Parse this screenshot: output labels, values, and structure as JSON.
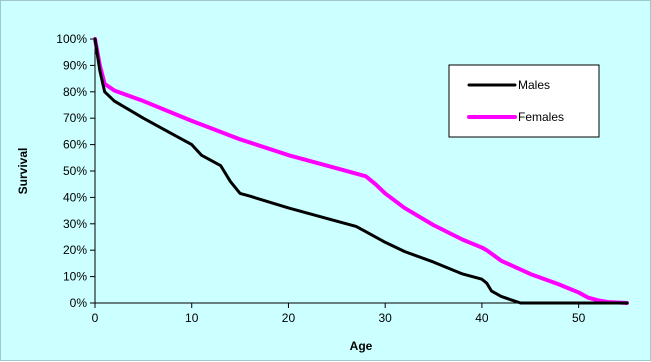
{
  "chart_data": {
    "type": "line",
    "xlabel": "Age",
    "ylabel": "Survival",
    "xlim": [
      0,
      55
    ],
    "ylim": [
      0,
      100
    ],
    "x_ticks": [
      0,
      10,
      20,
      30,
      40,
      50
    ],
    "y_ticks": [
      0,
      10,
      20,
      30,
      40,
      50,
      60,
      70,
      80,
      90,
      100
    ],
    "y_tick_suffix": "%",
    "grid": false,
    "legend_position": "top-right",
    "background_color": "#ccffff",
    "plot_background_color": "#ccffff",
    "series": [
      {
        "name": "Males",
        "color": "#000000",
        "points": [
          [
            0,
            100
          ],
          [
            0.5,
            88
          ],
          [
            1,
            80
          ],
          [
            2,
            76.5
          ],
          [
            5,
            70
          ],
          [
            8,
            64
          ],
          [
            10,
            60
          ],
          [
            11,
            56
          ],
          [
            13,
            52
          ],
          [
            14,
            46
          ],
          [
            15,
            41.5
          ],
          [
            16,
            40.5
          ],
          [
            20,
            36
          ],
          [
            25,
            31
          ],
          [
            27,
            29
          ],
          [
            28,
            27
          ],
          [
            30,
            23
          ],
          [
            32,
            19.5
          ],
          [
            35,
            15.5
          ],
          [
            38,
            11
          ],
          [
            40,
            9
          ],
          [
            40.5,
            7.5
          ],
          [
            41,
            4.5
          ],
          [
            42,
            2.5
          ],
          [
            43,
            1.2
          ],
          [
            44,
            0
          ],
          [
            45,
            0
          ],
          [
            50,
            0
          ],
          [
            55,
            0
          ]
        ]
      },
      {
        "name": "Females",
        "color": "#ff00ff",
        "points": [
          [
            0,
            100
          ],
          [
            0.5,
            90
          ],
          [
            1,
            83
          ],
          [
            2,
            80.5
          ],
          [
            5,
            76.5
          ],
          [
            10,
            69
          ],
          [
            15,
            62
          ],
          [
            20,
            56
          ],
          [
            25,
            51
          ],
          [
            28,
            48
          ],
          [
            29,
            45
          ],
          [
            30,
            41.5
          ],
          [
            32,
            36
          ],
          [
            35,
            29.5
          ],
          [
            38,
            24
          ],
          [
            40,
            21
          ],
          [
            40.5,
            20
          ],
          [
            42,
            16
          ],
          [
            45,
            11
          ],
          [
            48,
            7
          ],
          [
            49,
            5.5
          ],
          [
            50,
            4
          ],
          [
            51,
            2
          ],
          [
            52,
            1
          ],
          [
            53,
            0.4
          ],
          [
            55,
            0
          ]
        ]
      }
    ]
  }
}
